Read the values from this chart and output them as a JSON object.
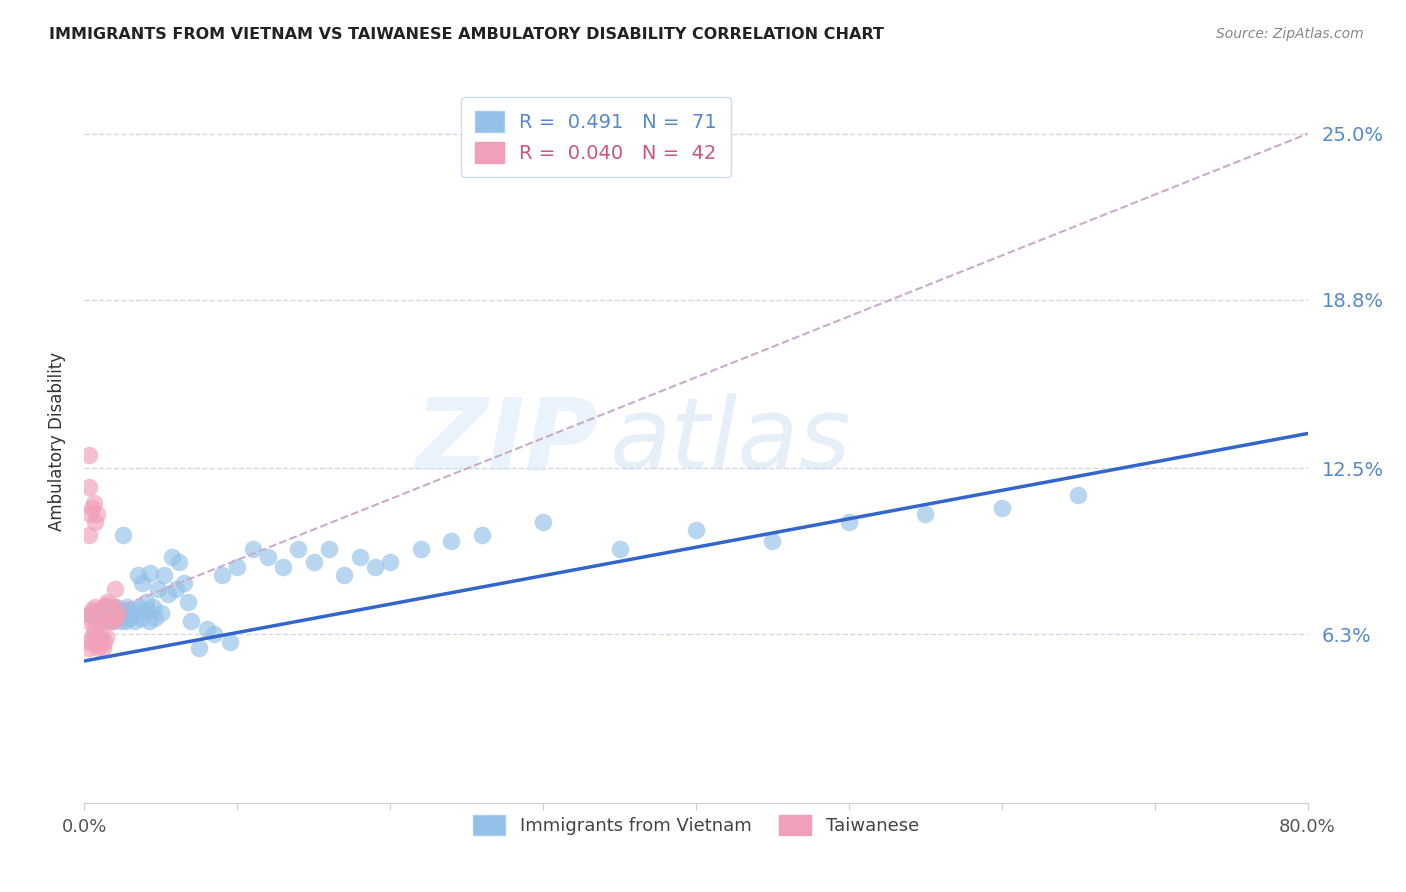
{
  "title": "IMMIGRANTS FROM VIETNAM VS TAIWANESE AMBULATORY DISABILITY CORRELATION CHART",
  "source": "Source: ZipAtlas.com",
  "ylabel": "Ambulatory Disability",
  "ytick_labels": [
    "6.3%",
    "12.5%",
    "18.8%",
    "25.0%"
  ],
  "ytick_values": [
    0.063,
    0.125,
    0.188,
    0.25
  ],
  "xlim": [
    0.0,
    0.8
  ],
  "ylim": [
    0.0,
    0.27
  ],
  "legend_entries": [
    {
      "label": "R =  0.491   N =  71",
      "color": "#a8c8f0"
    },
    {
      "label": "R =  0.040   N =  42",
      "color": "#f0a8b8"
    }
  ],
  "watermark_zip": "ZIP",
  "watermark_atlas": "atlas",
  "blue_scatter_x": [
    0.005,
    0.008,
    0.01,
    0.012,
    0.013,
    0.015,
    0.016,
    0.017,
    0.018,
    0.019,
    0.02,
    0.021,
    0.022,
    0.023,
    0.024,
    0.025,
    0.026,
    0.027,
    0.028,
    0.029,
    0.03,
    0.031,
    0.032,
    0.033,
    0.035,
    0.036,
    0.037,
    0.038,
    0.04,
    0.041,
    0.042,
    0.043,
    0.045,
    0.046,
    0.048,
    0.05,
    0.052,
    0.055,
    0.057,
    0.06,
    0.062,
    0.065,
    0.068,
    0.07,
    0.075,
    0.08,
    0.085,
    0.09,
    0.095,
    0.1,
    0.11,
    0.12,
    0.13,
    0.14,
    0.15,
    0.16,
    0.17,
    0.18,
    0.19,
    0.2,
    0.22,
    0.24,
    0.26,
    0.3,
    0.35,
    0.4,
    0.45,
    0.5,
    0.55,
    0.6,
    0.65
  ],
  "blue_scatter_y": [
    0.071,
    0.069,
    0.07,
    0.072,
    0.068,
    0.073,
    0.069,
    0.071,
    0.068,
    0.072,
    0.07,
    0.073,
    0.069,
    0.071,
    0.068,
    0.1,
    0.072,
    0.068,
    0.073,
    0.069,
    0.071,
    0.07,
    0.072,
    0.068,
    0.085,
    0.073,
    0.069,
    0.082,
    0.075,
    0.072,
    0.068,
    0.086,
    0.073,
    0.069,
    0.08,
    0.071,
    0.085,
    0.078,
    0.092,
    0.08,
    0.09,
    0.082,
    0.075,
    0.068,
    0.058,
    0.065,
    0.063,
    0.085,
    0.06,
    0.088,
    0.095,
    0.092,
    0.088,
    0.095,
    0.09,
    0.095,
    0.085,
    0.092,
    0.088,
    0.09,
    0.095,
    0.098,
    0.1,
    0.105,
    0.095,
    0.102,
    0.098,
    0.105,
    0.108,
    0.11,
    0.115
  ],
  "pink_scatter_x": [
    0.003,
    0.004,
    0.005,
    0.006,
    0.007,
    0.008,
    0.009,
    0.01,
    0.011,
    0.012,
    0.013,
    0.014,
    0.015,
    0.016,
    0.017,
    0.018,
    0.019,
    0.02,
    0.021,
    0.022,
    0.003,
    0.004,
    0.005,
    0.006,
    0.007,
    0.008,
    0.009,
    0.01,
    0.011,
    0.012,
    0.013,
    0.014,
    0.003,
    0.004,
    0.005,
    0.006,
    0.007,
    0.008,
    0.015,
    0.02,
    0.003,
    0.003
  ],
  "pink_scatter_y": [
    0.068,
    0.07,
    0.072,
    0.068,
    0.073,
    0.069,
    0.071,
    0.068,
    0.072,
    0.073,
    0.069,
    0.071,
    0.074,
    0.068,
    0.07,
    0.072,
    0.068,
    0.073,
    0.069,
    0.071,
    0.058,
    0.06,
    0.062,
    0.064,
    0.06,
    0.062,
    0.058,
    0.06,
    0.062,
    0.058,
    0.06,
    0.062,
    0.1,
    0.108,
    0.11,
    0.112,
    0.105,
    0.108,
    0.075,
    0.08,
    0.13,
    0.118
  ],
  "blue_line_x": [
    0.0,
    0.8
  ],
  "blue_line_y": [
    0.053,
    0.138
  ],
  "pink_line_x": [
    0.0,
    0.8
  ],
  "pink_line_y": [
    0.068,
    0.25
  ],
  "blue_color": "#92c0e8",
  "pink_color": "#f0a0b8",
  "blue_line_color": "#3366cc",
  "pink_line_color": "#ccaacc",
  "pink_line_style": "--",
  "grid_color": "#d0d8e8",
  "bg_color": "#ffffff",
  "title_color": "#222222",
  "source_color": "#888888",
  "ytick_color": "#5588cc",
  "xtick_color": "#555555",
  "ylabel_color": "#333333"
}
